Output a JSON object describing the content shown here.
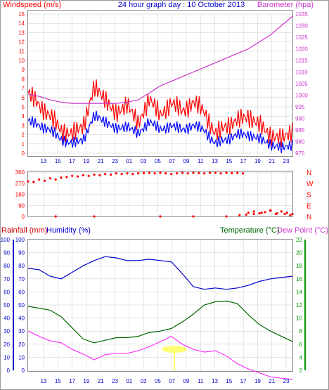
{
  "title": "24 hour graph day : 10 October 2013",
  "colors": {
    "wind_avg": "#0000ff",
    "wind_gust": "#ff0000",
    "barometer": "#cc33cc",
    "direction": "#ff0000",
    "humidity": "#0000cc",
    "temperature": "#006600",
    "dewpoint": "#ff33ff",
    "rain_axis": "#0000cc",
    "rain_label": "#cc0000",
    "temp_axis": "#009900",
    "time_axis": "#0000cc",
    "grid": "#cccccc",
    "sun": "#ffff66"
  },
  "x_ticks": [
    "13",
    "15",
    "17",
    "19",
    "21",
    "23",
    "01",
    "03",
    "05",
    "07",
    "09",
    "11",
    "13",
    "15",
    "17",
    "19",
    "21",
    "23"
  ],
  "chart_data": [
    {
      "type": "line",
      "title": "24 hour graph day : 10 October 2013",
      "ylabel_left": "Windspeed (m/s)",
      "ylabel_right": "Barometer (hpa)",
      "y_left_ticks": [
        "15",
        "14",
        "13",
        "12",
        "11",
        "10",
        "9",
        "8",
        "7",
        "6",
        "5",
        "4",
        "3",
        "2",
        "1",
        "0"
      ],
      "y_left_range": [
        0,
        15
      ],
      "y_right_ticks": [
        "1035",
        "1030",
        "1025",
        "1020",
        "1015",
        "1010",
        "1005",
        "1000",
        "995",
        "990",
        "985",
        "980",
        "975"
      ],
      "y_right_range": [
        975,
        1035
      ],
      "hours_from_12": [
        0,
        2,
        4,
        6,
        8,
        10,
        12,
        14,
        16,
        18,
        20,
        22,
        24
      ],
      "series": [
        {
          "key": "gust",
          "axis": "left",
          "values": [
            6.5,
            5.2,
            4.0,
            2.5,
            2.0,
            3.0,
            7.0,
            6.0,
            4.0,
            5.5,
            3.0,
            6.0,
            4.0,
            5.5,
            4.5,
            5.5,
            4.5,
            2.0,
            3.0,
            3.5,
            4.0,
            3.0,
            2.0,
            1.5,
            2.5
          ]
        },
        {
          "key": "avg",
          "axis": "left",
          "values": [
            3.5,
            3.0,
            2.5,
            1.5,
            1.0,
            1.5,
            4.0,
            3.5,
            2.5,
            3.0,
            2.0,
            3.5,
            2.5,
            3.0,
            2.5,
            3.0,
            2.5,
            1.0,
            1.5,
            2.0,
            2.0,
            1.5,
            1.0,
            0.5,
            1.0
          ]
        },
        {
          "key": "baro",
          "axis": "right",
          "values": [
            1000.5,
            999.5,
            998.0,
            997.0,
            996.5,
            996.5,
            996.5,
            996.5,
            996.5,
            997.0,
            998.0,
            1001.0,
            1004.0,
            1006.0,
            1008.0,
            1010.0,
            1012.0,
            1014.0,
            1016.0,
            1018.0,
            1020.0,
            1023.0,
            1026.0,
            1030.0,
            1034.0
          ]
        }
      ]
    },
    {
      "type": "scatter",
      "title": "",
      "y_left_ticks": [
        "360",
        "270",
        "180",
        "90",
        "0"
      ],
      "y_range": [
        0,
        360
      ],
      "y_right_labels": [
        "N",
        "W",
        "S",
        "E",
        "N"
      ],
      "points_hours": [
        0,
        0.5,
        1,
        1.5,
        2,
        2.5,
        3,
        3.5,
        4,
        4.5,
        5,
        5.5,
        6,
        6.5,
        7,
        7.5,
        8,
        8.5,
        9,
        9.5,
        10,
        10.5,
        11,
        11.5,
        12,
        12.5,
        13,
        13.5,
        14,
        14.5,
        15,
        15.5,
        16,
        16.5,
        17,
        17.5,
        18,
        18.5,
        19,
        19.5,
        20,
        20.5,
        21,
        21.5,
        22,
        22.5,
        23,
        23.5,
        24,
        2.5,
        6,
        12,
        15,
        18,
        19.2,
        19.8,
        20.5,
        21.2,
        22,
        22.6,
        23.3,
        23.8
      ],
      "points_deg": [
        285,
        280,
        300,
        290,
        310,
        300,
        315,
        320,
        330,
        325,
        335,
        330,
        340,
        335,
        345,
        340,
        350,
        345,
        350,
        345,
        350,
        352,
        355,
        350,
        355,
        350,
        345,
        350,
        355,
        350,
        355,
        352,
        350,
        355,
        355,
        350,
        355,
        352,
        355,
        350,
        30,
        40,
        25,
        35,
        50,
        20,
        40,
        30,
        20,
        0,
        0,
        0,
        0,
        0,
        10,
        15,
        20,
        30,
        45,
        25,
        20,
        10
      ],
      "gap_hours": [
        17.5,
        22.5
      ]
    },
    {
      "type": "line",
      "title": "",
      "ylabel_left_1": "Rainfall (mm)",
      "ylabel_left_2": "Humidity (%)",
      "ylabel_right_1": "Temperature (°C)",
      "ylabel_right_2": "Dew Point (°C)",
      "rain_ticks": [
        "100",
        "90",
        "80",
        "70",
        "60",
        "50",
        "40",
        "30",
        "20",
        "10",
        "0"
      ],
      "humidity_ticks": [
        "100",
        "90",
        "80",
        "70",
        "60",
        "50",
        "40",
        "30",
        "20",
        "10",
        "0"
      ],
      "temp_ticks": [
        "22",
        "20",
        "18",
        "16",
        "14",
        "12",
        "10",
        "8",
        "6",
        "4",
        "2"
      ],
      "temp_range": [
        2,
        22
      ],
      "humidity_range": [
        0,
        100
      ],
      "series": [
        {
          "key": "humidity",
          "values": [
            78,
            77,
            72,
            70,
            75,
            80,
            84,
            87,
            86,
            84,
            84,
            85,
            84,
            83,
            74,
            64,
            62,
            63,
            62,
            63,
            65,
            68,
            70,
            71,
            72
          ]
        },
        {
          "key": "temperature",
          "values": [
            11.8,
            11.5,
            11.2,
            10.2,
            8.5,
            6.8,
            6.2,
            6.6,
            7.0,
            7.0,
            7.2,
            7.8,
            8.0,
            8.4,
            9.4,
            10.6,
            12.0,
            12.5,
            12.6,
            12.2,
            10.5,
            9.0,
            8.0,
            7.2,
            6.4
          ]
        },
        {
          "key": "dewpoint",
          "values": [
            8.0,
            7.2,
            6.5,
            6.2,
            5.2,
            4.5,
            3.6,
            4.4,
            4.6,
            4.6,
            5.0,
            5.6,
            6.4,
            7.2,
            6.0,
            5.2,
            4.8,
            5.0,
            4.2,
            3.0,
            2.2,
            1.6,
            1.0,
            0.8,
            0.6
          ]
        }
      ]
    }
  ]
}
